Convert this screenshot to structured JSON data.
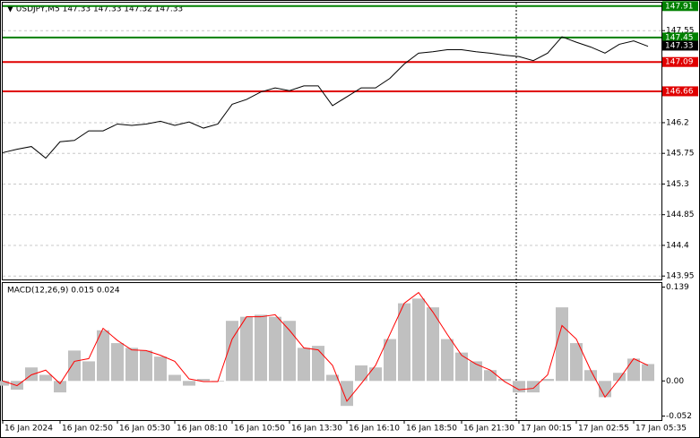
{
  "chart_data": [
    {
      "type": "line",
      "title": "▼ USDJPY,M5  147.33 147.33 147.32 147.33",
      "color": "#000000",
      "grid": true,
      "ylim": [
        143.9,
        147.96
      ],
      "yticks": [
        147.55,
        146.2,
        145.75,
        145.3,
        144.85,
        144.4,
        143.95
      ],
      "values": [
        145.76,
        145.81,
        145.85,
        145.68,
        145.92,
        145.94,
        146.08,
        146.08,
        146.18,
        146.16,
        146.18,
        146.22,
        146.16,
        146.21,
        146.12,
        146.18,
        146.47,
        146.54,
        146.65,
        146.71,
        146.67,
        146.74,
        146.74,
        146.45,
        146.58,
        146.71,
        146.71,
        146.85,
        147.06,
        147.22,
        147.24,
        147.27,
        147.27,
        147.24,
        147.22,
        147.19,
        147.17,
        147.11,
        147.22,
        147.46,
        147.38,
        147.31,
        147.22,
        147.35,
        147.4,
        147.32
      ],
      "levels": [
        {
          "value": 147.91,
          "color": "#008000"
        },
        {
          "value": 147.45,
          "color": "#008000"
        },
        {
          "value": 147.09,
          "color": "#e00000"
        },
        {
          "value": 146.66,
          "color": "#e00000"
        }
      ],
      "last": 147.33
    },
    {
      "type": "macd",
      "title": "MACD(12,26,9) 0.015 0.024",
      "ylim": [
        -0.058,
        0.145
      ],
      "yticks": [
        0.139,
        {
          "value": 0,
          "label": "0.00"
        },
        -0.052
      ],
      "categories": [
        "16 Jan 2024",
        null,
        null,
        null,
        "16 Jan 02:50",
        null,
        null,
        null,
        "16 Jan 05:30",
        null,
        null,
        null,
        "16 Jan 08:10",
        null,
        null,
        null,
        "16 Jan 10:50",
        null,
        null,
        null,
        "16 Jan 13:30",
        null,
        null,
        null,
        "16 Jan 16:10",
        null,
        null,
        null,
        "16 Jan 18:50",
        null,
        null,
        null,
        "16 Jan 21:30",
        null,
        null,
        null,
        "17 Jan 00:15",
        null,
        null,
        null,
        "17 Jan 02:55",
        null,
        null,
        null,
        "17 Jan 05:35",
        null
      ],
      "series": [
        {
          "kind": "bar",
          "color": "#c0c0c0",
          "values": [
            -0.007,
            -0.013,
            0.02,
            0.009,
            -0.017,
            0.045,
            0.029,
            0.075,
            0.056,
            0.049,
            0.045,
            0.036,
            0.009,
            -0.007,
            0.003,
            -0.001,
            0.089,
            0.095,
            0.098,
            0.095,
            0.089,
            0.049,
            0.052,
            0.009,
            -0.037,
            0.023,
            0.02,
            0.062,
            0.115,
            0.122,
            0.109,
            0.062,
            0.042,
            0.029,
            0.016,
            0.003,
            -0.017,
            -0.017,
            0.003,
            0.109,
            0.056,
            0.016,
            -0.024,
            0.012,
            0.033,
            0.025
          ]
        },
        {
          "kind": "line",
          "color": "#ff0000",
          "values": [
            0.0,
            -0.007,
            0.009,
            0.016,
            -0.004,
            0.029,
            0.033,
            0.078,
            0.06,
            0.046,
            0.045,
            0.038,
            0.029,
            0.003,
            -0.001,
            -0.001,
            0.062,
            0.095,
            0.095,
            0.098,
            0.075,
            0.049,
            0.046,
            0.023,
            -0.03,
            -0.004,
            0.023,
            0.069,
            0.115,
            0.131,
            0.102,
            0.069,
            0.038,
            0.025,
            0.016,
            -0.001,
            -0.013,
            -0.011,
            0.009,
            0.082,
            0.062,
            0.016,
            -0.024,
            0.003,
            0.033,
            0.023
          ]
        }
      ]
    }
  ]
}
